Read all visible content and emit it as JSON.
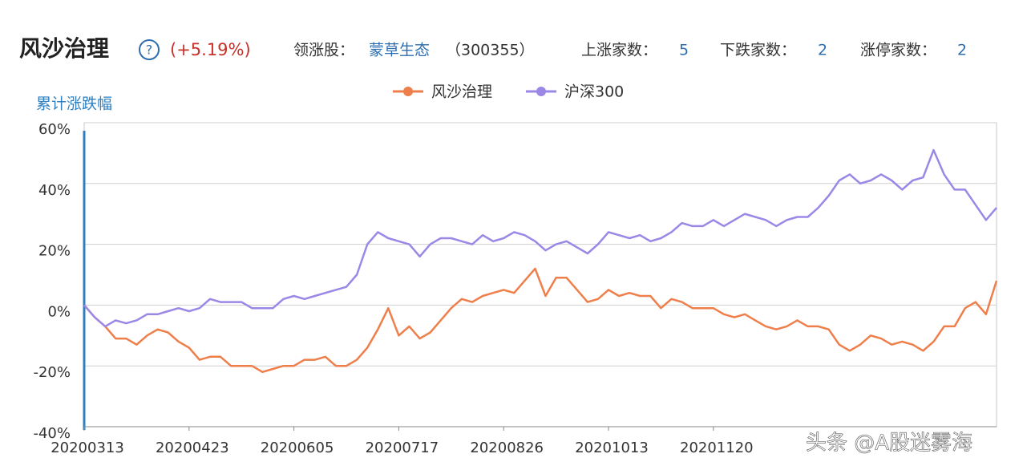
{
  "header": {
    "title": "风沙治理",
    "change": "(+5.19%)",
    "leader_label": "领涨股：",
    "leader_name": "蒙草生态",
    "leader_code": "（300355）",
    "up_label": "上涨家数：",
    "up_count": "5",
    "down_label": "下跌家数：",
    "down_count": "2",
    "limit_label": "涨停家数：",
    "limit_count": "2"
  },
  "watermark": "头条 @A股迷雾海",
  "chart_data": {
    "type": "line",
    "y_label": "累计涨跌幅",
    "categories": [
      "20200313",
      null,
      null,
      null,
      null,
      null,
      null,
      null,
      null,
      null,
      "20200423",
      null,
      null,
      null,
      null,
      null,
      null,
      null,
      null,
      null,
      "20200605",
      null,
      null,
      null,
      null,
      null,
      null,
      null,
      null,
      null,
      "20200717",
      null,
      null,
      null,
      null,
      null,
      null,
      null,
      null,
      null,
      "20200826",
      null,
      null,
      null,
      null,
      null,
      null,
      null,
      null,
      null,
      "20201013",
      null,
      null,
      null,
      null,
      null,
      null,
      null,
      null,
      null,
      "20201120",
      null,
      null,
      null,
      null,
      null,
      null,
      null,
      null,
      null,
      null,
      null,
      null,
      null,
      null,
      null,
      null,
      null,
      null,
      null,
      null,
      null,
      null,
      null,
      null,
      null,
      null,
      null
    ],
    "series": [
      {
        "name": "风沙治理",
        "color": "#ee7f4b",
        "values": [
          0,
          -4,
          -7,
          -11,
          -11,
          -13,
          -10,
          -8,
          -9,
          -12,
          -14,
          -18,
          -17,
          -17,
          -20,
          -20,
          -20,
          -22,
          -21,
          -20,
          -20,
          -18,
          -18,
          -17,
          -20,
          -20,
          -18,
          -14,
          -8,
          -1,
          -10,
          -7,
          -11,
          -9,
          -5,
          -1,
          2,
          1,
          3,
          4,
          5,
          4,
          8,
          12,
          3,
          9,
          9,
          5,
          1,
          2,
          5,
          3,
          4,
          3,
          3,
          -1,
          2,
          1,
          -1,
          -1,
          -1,
          -3,
          -4,
          -3,
          -5,
          -7,
          -8,
          -7,
          -5,
          -7,
          -7,
          -8,
          -13,
          -15,
          -13,
          -10,
          -11,
          -13,
          -12,
          -13,
          -15,
          -12,
          -7,
          -7,
          -1,
          1,
          -3,
          8
        ]
      },
      {
        "name": "沪深300",
        "color": "#9b87e6",
        "values": [
          0,
          -4,
          -7,
          -5,
          -6,
          -5,
          -3,
          -3,
          -2,
          -1,
          -2,
          -1,
          2,
          1,
          1,
          1,
          -1,
          -1,
          -1,
          2,
          3,
          2,
          3,
          4,
          5,
          6,
          10,
          20,
          24,
          22,
          21,
          20,
          16,
          20,
          22,
          22,
          21,
          20,
          23,
          21,
          22,
          24,
          23,
          21,
          18,
          20,
          21,
          19,
          17,
          20,
          24,
          23,
          22,
          23,
          21,
          22,
          24,
          27,
          26,
          26,
          28,
          26,
          28,
          30,
          29,
          28,
          26,
          28,
          29,
          29,
          32,
          36,
          41,
          43,
          40,
          41,
          43,
          41,
          38,
          41,
          42,
          51,
          43,
          38,
          38,
          33,
          28,
          32
        ]
      }
    ],
    "ylim": [
      -40,
      60
    ],
    "yticks": [
      {
        "value": -40,
        "label": "-40%"
      },
      {
        "value": -20,
        "label": "-20%"
      },
      {
        "value": 0,
        "label": "0%"
      },
      {
        "value": 20,
        "label": "20%"
      },
      {
        "value": 40,
        "label": "40%"
      },
      {
        "value": 60,
        "label": "60%"
      }
    ],
    "grid": true
  }
}
